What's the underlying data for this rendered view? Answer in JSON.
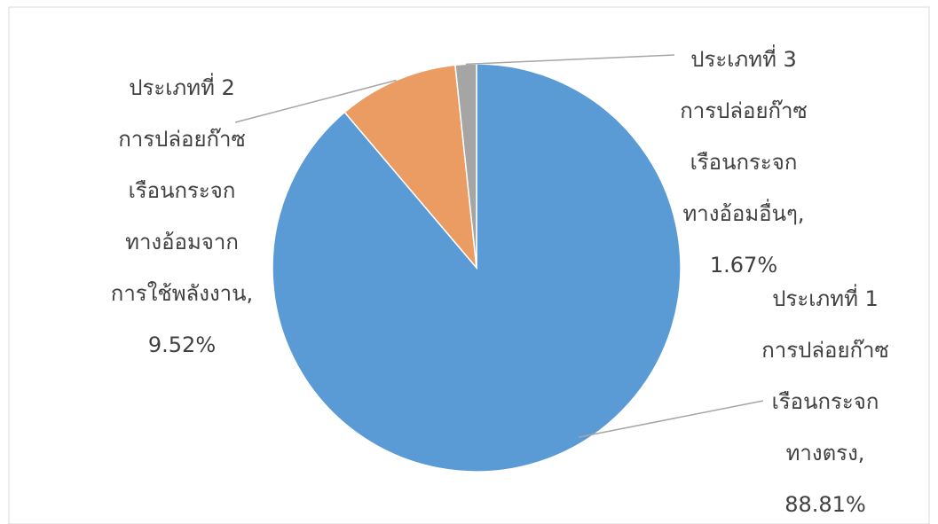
{
  "chart_data": {
    "type": "pie",
    "categories": [
      [
        "ประเภทที่ 1",
        "การปล่อยก๊าซ",
        "เรือนกระจก",
        "ทางตรง,"
      ],
      [
        "ประเภทที่ 2",
        "การปล่อยก๊าซ",
        "เรือนกระจก",
        "ทางอ้อมจาก",
        "การใช้พลังงาน,"
      ],
      [
        "ประเภทที่ 3",
        "การปล่อยก๊าซ",
        "เรือนกระจก",
        "ทางอ้อมอื่นๆ,"
      ]
    ],
    "values": [
      88.81,
      9.52,
      1.67
    ],
    "value_labels": [
      "88.81%",
      "9.52%",
      "1.67%"
    ],
    "colors": [
      "#5b9bd5",
      "#eb9c62",
      "#a5a5a5"
    ]
  }
}
